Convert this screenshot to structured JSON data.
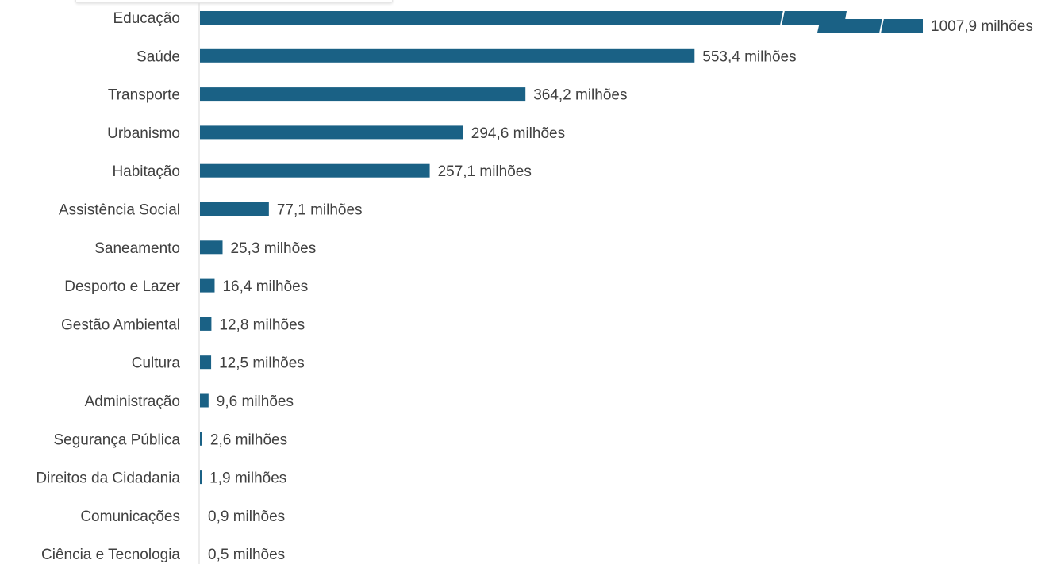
{
  "chart_data": {
    "type": "bar",
    "orientation": "horizontal",
    "categories": [
      "Educação",
      "Saúde",
      "Transporte",
      "Urbanismo",
      "Habitação",
      "Assistência Social",
      "Saneamento",
      "Desporto e Lazer",
      "Gestão Ambiental",
      "Cultura",
      "Administração",
      "Segurança Pública",
      "Direitos da Cidadania",
      "Comunicações",
      "Ciência e Tecnologia"
    ],
    "values": [
      1007.9,
      553.4,
      364.2,
      294.6,
      257.1,
      77.1,
      25.3,
      16.4,
      12.8,
      12.5,
      9.6,
      2.6,
      1.9,
      0.9,
      0.5
    ],
    "value_labels": [
      "1007,9 milhões",
      "553,4 milhões",
      "364,2 milhões",
      "294,6 milhões",
      "257,1 milhões",
      "77,1 milhões",
      "25,3 milhões",
      "16,4 milhões",
      "12,8 milhões",
      "12,5 milhões",
      "9,6 milhões",
      "2,6 milhões",
      "1,9 milhões",
      "0,9 milhões",
      "0,5 milhões"
    ],
    "unit": "milhões",
    "broken_axis_bar": "Educação",
    "title": "",
    "xlabel": "",
    "ylabel": "",
    "grid": false,
    "legend": "none",
    "colors": {
      "bar": "#1a6185",
      "text": "#404040",
      "axis": "#d9d9d9"
    }
  }
}
